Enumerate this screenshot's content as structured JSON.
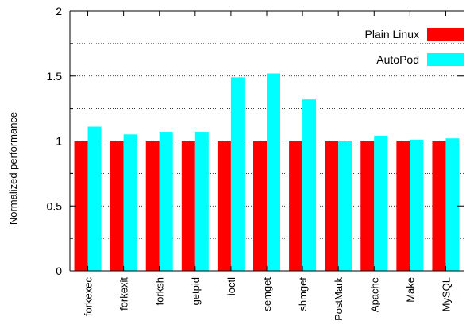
{
  "chart_data": {
    "type": "bar",
    "title": "",
    "xlabel": "",
    "ylabel": "Normalized performance",
    "ylim": [
      0,
      2
    ],
    "yticks": [
      {
        "value": 0,
        "label": "0"
      },
      {
        "value": 0.5,
        "label": "0.5"
      },
      {
        "value": 1,
        "label": "1"
      },
      {
        "value": 1.5,
        "label": "1.5"
      },
      {
        "value": 2,
        "label": "2"
      }
    ],
    "minor_yticks": [
      0.25,
      0.75,
      1.25,
      1.75
    ],
    "grid": "dotted horizontal",
    "legend_position": "top-right",
    "categories": [
      "forkexec",
      "forkexit",
      "forksh",
      "getpid",
      "ioctl",
      "semget",
      "shmget",
      "PostMark",
      "Apache",
      "Make",
      "MySQL"
    ],
    "series": [
      {
        "name": "Plain Linux",
        "color": "#ff0000",
        "values": [
          1,
          1,
          1,
          1,
          1,
          1,
          1,
          1,
          1,
          1,
          1
        ]
      },
      {
        "name": "AutoPod",
        "color": "#00ffff",
        "values": [
          1.11,
          1.05,
          1.07,
          1.07,
          1.49,
          1.52,
          1.32,
          1.0,
          1.04,
          1.01,
          1.02
        ]
      }
    ]
  }
}
